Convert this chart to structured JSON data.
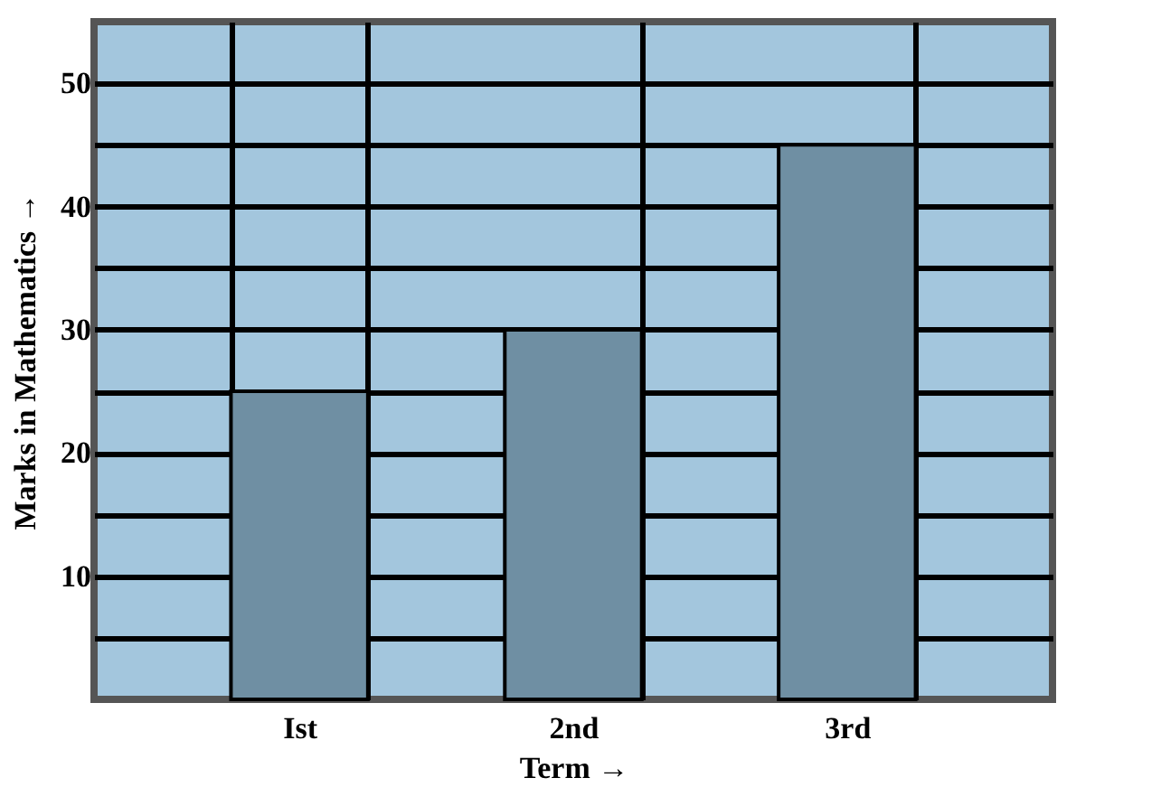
{
  "chart_data": {
    "type": "bar",
    "xlabel": "Term →",
    "ylabel": "Marks in Mathematics →",
    "categories": [
      "Ist",
      "2nd",
      "3rd"
    ],
    "values": [
      25,
      30,
      45
    ],
    "color": "#6f8fa3",
    "ylim": [
      0,
      55
    ],
    "yticks": [
      {
        "value": 5,
        "label": null
      },
      10,
      {
        "value": 15,
        "label": null
      },
      20,
      {
        "value": 25,
        "label": null
      },
      30,
      {
        "value": 35,
        "label": null
      },
      40,
      {
        "value": 45,
        "label": null
      },
      50
    ],
    "grid": true
  }
}
